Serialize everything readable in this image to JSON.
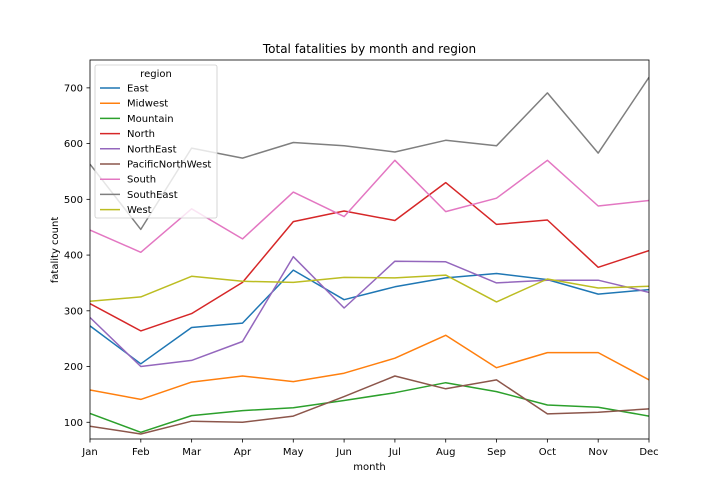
{
  "chart_data": {
    "type": "line",
    "title": "Total fatalities by month and region",
    "xlabel": "month",
    "ylabel": "fatality count",
    "categories": [
      "Jan",
      "Feb",
      "Mar",
      "Apr",
      "May",
      "Jun",
      "Jul",
      "Aug",
      "Sep",
      "Oct",
      "Nov",
      "Dec"
    ],
    "ylim": [
      70,
      750
    ],
    "yticks": [
      100,
      200,
      300,
      400,
      500,
      600,
      700
    ],
    "grid": false,
    "legend": {
      "title": "region",
      "placement": "top-left"
    },
    "series": [
      {
        "name": "East",
        "color": "#1f77b4",
        "values": [
          273,
          205,
          270,
          278,
          373,
          320,
          343,
          359,
          367,
          356,
          330,
          338
        ]
      },
      {
        "name": "Midwest",
        "color": "#ff7f0e",
        "values": [
          158,
          141,
          172,
          183,
          173,
          188,
          215,
          256,
          198,
          225,
          225,
          176
        ]
      },
      {
        "name": "Mountain",
        "color": "#2ca02c",
        "values": [
          116,
          82,
          112,
          121,
          126,
          139,
          153,
          171,
          155,
          131,
          127,
          111
        ]
      },
      {
        "name": "North",
        "color": "#d62728",
        "values": [
          313,
          264,
          295,
          351,
          460,
          479,
          462,
          530,
          455,
          463,
          378,
          408
        ]
      },
      {
        "name": "NorthEast",
        "color": "#9467bd",
        "values": [
          288,
          200,
          211,
          245,
          397,
          305,
          389,
          388,
          350,
          355,
          355,
          333
        ]
      },
      {
        "name": "PacificNorthWest",
        "color": "#8c564b",
        "values": [
          93,
          79,
          102,
          100,
          111,
          146,
          183,
          160,
          176,
          115,
          118,
          124
        ]
      },
      {
        "name": "South",
        "color": "#e377c2",
        "values": [
          445,
          405,
          483,
          429,
          513,
          469,
          570,
          478,
          502,
          570,
          488,
          498
        ]
      },
      {
        "name": "SouthEast",
        "color": "#7f7f7f",
        "values": [
          563,
          446,
          592,
          574,
          602,
          596,
          585,
          606,
          596,
          691,
          583,
          719
        ]
      },
      {
        "name": "West",
        "color": "#bcbd22",
        "values": [
          317,
          325,
          362,
          353,
          351,
          360,
          359,
          364,
          316,
          357,
          341,
          344
        ]
      }
    ]
  }
}
